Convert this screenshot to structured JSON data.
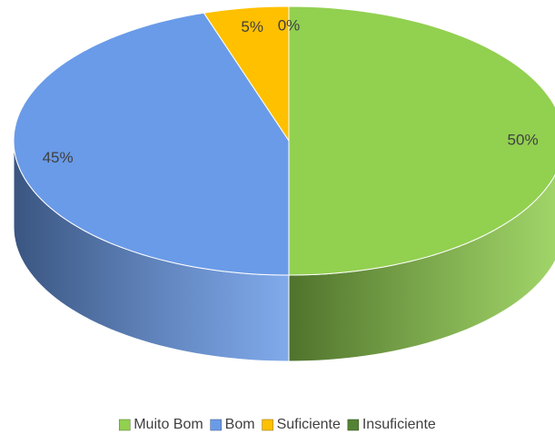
{
  "chart_data": {
    "type": "pie3d",
    "categories": [
      "Muito Bom",
      "Bom",
      "Suficiente",
      "Insuficiente"
    ],
    "values": [
      50,
      45,
      5,
      0
    ],
    "value_labels": [
      "50%",
      "45%",
      "5%",
      "0%"
    ],
    "colors": [
      "#92d050",
      "#6a9be8",
      "#ffc000",
      "#548235"
    ],
    "legend": "bottom"
  }
}
